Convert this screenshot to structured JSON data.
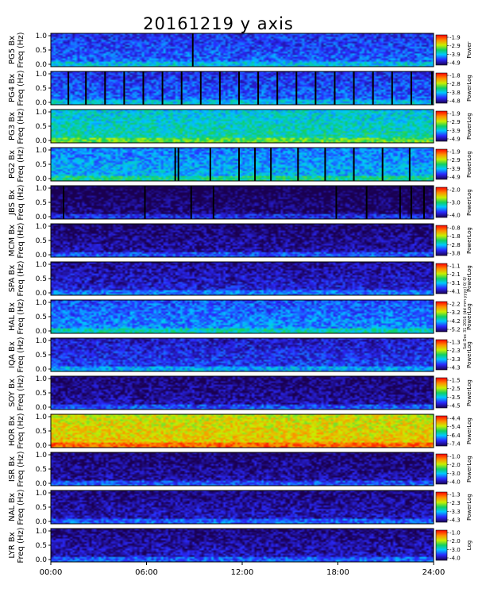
{
  "title": "20161219 y axis",
  "side_note": "Sat Dec 31 2016 (dd mm yyyy) 0/ 0/",
  "chart_data": {
    "type": "heatmap",
    "x_ticks": [
      "00:00",
      "06:00",
      "12:00",
      "18:00",
      "24:00"
    ],
    "xlim_hours": [
      0,
      24
    ],
    "y_ticks": [
      "1.0",
      "0.5",
      "0.0"
    ],
    "ylim_hz": [
      0,
      1.0
    ],
    "panels": [
      {
        "station": "PG5",
        "ylabel": [
          "PG5 Bx",
          "Freq (Hz)"
        ],
        "colorbar_label": "Power",
        "colorbar_ticks": [
          "-1.9",
          "-2.9",
          "-3.9",
          "-4.9"
        ],
        "base_level": 0.25,
        "gap_hours": [
          8.9
        ]
      },
      {
        "station": "PG4",
        "ylabel": [
          "PG4 Bx",
          "Freq (Hz)"
        ],
        "colorbar_label": "PowerLog",
        "colorbar_ticks": [
          "-1.8",
          "-2.8",
          "-3.8",
          "-4.8"
        ],
        "base_level": 0.25,
        "gap_hours": [
          1.1,
          2.2,
          3.4,
          4.6,
          5.8,
          7.0,
          8.2,
          9.4,
          10.6,
          11.8,
          13.0,
          14.2,
          15.4,
          16.6,
          17.8,
          19.0,
          20.2,
          21.4,
          22.6,
          23.9
        ]
      },
      {
        "station": "PG3",
        "ylabel": [
          "PG3 Bx",
          "Freq (Hz)"
        ],
        "colorbar_label": "PowerLog",
        "colorbar_ticks": [
          "-1.9",
          "-2.9",
          "-3.9",
          "-4.9"
        ],
        "base_level": 0.45,
        "gap_hours": []
      },
      {
        "station": "PG2",
        "ylabel": [
          "PG2 Bx",
          "Freq (Hz)"
        ],
        "colorbar_label": "PowerLog",
        "colorbar_ticks": [
          "-1.9",
          "-2.9",
          "-3.9",
          "-4.9"
        ],
        "base_level": 0.35,
        "gap_hours": [
          7.8,
          8.0,
          10.0,
          11.8,
          12.8,
          13.8,
          15.5,
          17.2,
          19.0,
          20.8,
          22.5
        ]
      },
      {
        "station": "JBS",
        "ylabel": [
          "JBS Bx",
          "Freq (Hz)"
        ],
        "colorbar_label": "PowerLog",
        "colorbar_ticks": [
          "-2.0",
          "-3.0",
          "-4.0"
        ],
        "base_level": 0.05,
        "gap_hours": [
          0.8,
          5.9,
          8.8,
          10.2,
          17.9,
          19.8,
          21.9,
          22.6,
          23.4
        ]
      },
      {
        "station": "MCM",
        "ylabel": [
          "MCM Bx",
          "Freq (Hz)"
        ],
        "colorbar_label": "PowerLog",
        "colorbar_ticks": [
          "-0.8",
          "-1.8",
          "-2.8",
          "-3.8"
        ],
        "base_level": 0.1,
        "gap_hours": []
      },
      {
        "station": "SPA",
        "ylabel": [
          "SPA Bx",
          "Freq (Hz)"
        ],
        "colorbar_label": "PowerLog",
        "colorbar_ticks": [
          "-1.1",
          "-2.1",
          "-3.1",
          "-4.1"
        ],
        "base_level": 0.15,
        "gap_hours": []
      },
      {
        "station": "HAL",
        "ylabel": [
          "HAL Bx",
          "Freq (Hz)"
        ],
        "colorbar_label": "PowerLog",
        "colorbar_ticks": [
          "-2.2",
          "-3.2",
          "-4.2",
          "-5.2"
        ],
        "base_level": 0.3,
        "gap_hours": []
      },
      {
        "station": "IQA",
        "ylabel": [
          "IQA Bx",
          "Freq (Hz)"
        ],
        "colorbar_label": "PowerLog",
        "colorbar_ticks": [
          "-1.3",
          "-2.3",
          "-3.3",
          "-4.3"
        ],
        "base_level": 0.2,
        "gap_hours": []
      },
      {
        "station": "SOY",
        "ylabel": [
          "SOY Bx",
          "Freq (Hz)"
        ],
        "colorbar_label": "PowerLog",
        "colorbar_ticks": [
          "-1.5",
          "-2.5",
          "-3.5",
          "-4.5"
        ],
        "base_level": 0.1,
        "gap_hours": []
      },
      {
        "station": "HOR",
        "ylabel": [
          "HOR Bx",
          "Freq (Hz)"
        ],
        "colorbar_label": "PowerLog",
        "colorbar_ticks": [
          "-4.4",
          "-5.4",
          "-6.4",
          "-7.4"
        ],
        "base_level": 0.75,
        "gap_hours": []
      },
      {
        "station": "ISR",
        "ylabel": [
          "ISR Bx",
          "Freq (Hz)"
        ],
        "colorbar_label": "PowerLog",
        "colorbar_ticks": [
          "-1.0",
          "-2.0",
          "-3.0",
          "-4.0"
        ],
        "base_level": 0.1,
        "gap_hours": []
      },
      {
        "station": "NAL",
        "ylabel": [
          "NAL Bx",
          "Freq (Hz)"
        ],
        "colorbar_label": "PowerLog",
        "colorbar_ticks": [
          "-1.3",
          "-2.3",
          "-3.3",
          "-4.3"
        ],
        "base_level": 0.12,
        "gap_hours": []
      },
      {
        "station": "LYR",
        "ylabel": [
          "LYR Bx",
          "Freq (Hz)"
        ],
        "colorbar_label": "Log",
        "colorbar_ticks": [
          "-1.0",
          "-2.0",
          "-3.0",
          "-4.0"
        ],
        "base_level": 0.12,
        "gap_hours": []
      }
    ]
  }
}
